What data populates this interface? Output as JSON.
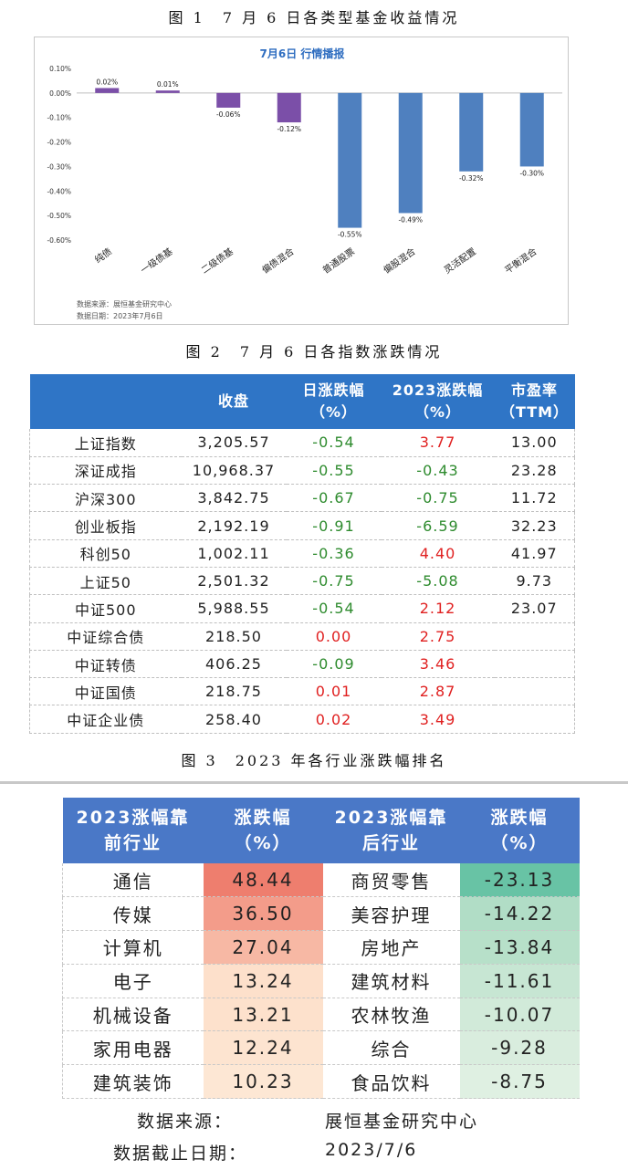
{
  "captions": {
    "fig1": "图 1　7 月 6 日各类型基金收益情况",
    "fig2": "图 2　7 月 6 日各指数涨跌情况",
    "fig3": "图 3　2023 年各行业涨跌幅排名"
  },
  "chart_data": {
    "type": "bar",
    "title": "7月6日  行情播报",
    "categories": [
      "纯债",
      "一级债基",
      "二级债基",
      "偏债混合",
      "普通股票",
      "偏股混合",
      "灵活配置",
      "平衡混合"
    ],
    "values": [
      0.02,
      0.01,
      -0.06,
      -0.12,
      -0.55,
      -0.49,
      -0.32,
      -0.3
    ],
    "value_labels": [
      "0.02%",
      "0.01%",
      "-0.06%",
      "-0.12%",
      "-0.55%",
      "-0.49%",
      "-0.32%",
      "-0.30%"
    ],
    "ylim": [
      -0.6,
      0.1
    ],
    "yticks": [
      0.1,
      0.0,
      -0.1,
      -0.2,
      -0.3,
      -0.4,
      -0.5,
      -0.6
    ],
    "ytick_labels": [
      "0.10%",
      "0.00%",
      "-0.10%",
      "-0.20%",
      "-0.30%",
      "-0.40%",
      "-0.50%",
      "-0.60%"
    ],
    "bar_colors": [
      "#7b4fa8",
      "#7b4fa8",
      "#7b4fa8",
      "#7b4fa8",
      "#4f80bf",
      "#4f80bf",
      "#4f80bf",
      "#4f80bf"
    ],
    "title_color": "#2e6dc0",
    "source": "数据来源：展恒基金研究中心",
    "date": "数据日期：2023年7月6日",
    "grid": false
  },
  "index_table": {
    "headers": [
      "",
      "收盘",
      "日涨跌幅\n（%）",
      "2023涨跌幅\n（%）",
      "市盈率\n（TTM）"
    ],
    "rows": [
      {
        "name": "上证指数",
        "close": "3,205.57",
        "day": "-0.54",
        "day_dir": "down",
        "ytd": "3.77",
        "ytd_dir": "up",
        "pe": "13.00"
      },
      {
        "name": "深证成指",
        "close": "10,968.37",
        "day": "-0.55",
        "day_dir": "down",
        "ytd": "-0.43",
        "ytd_dir": "down",
        "pe": "23.28"
      },
      {
        "name": "沪深300",
        "close": "3,842.75",
        "day": "-0.67",
        "day_dir": "down",
        "ytd": "-0.75",
        "ytd_dir": "down",
        "pe": "11.72"
      },
      {
        "name": "创业板指",
        "close": "2,192.19",
        "day": "-0.91",
        "day_dir": "down",
        "ytd": "-6.59",
        "ytd_dir": "down",
        "pe": "32.23"
      },
      {
        "name": "科创50",
        "close": "1,002.11",
        "day": "-0.36",
        "day_dir": "down",
        "ytd": "4.40",
        "ytd_dir": "up",
        "pe": "41.97"
      },
      {
        "name": "上证50",
        "close": "2,501.32",
        "day": "-0.75",
        "day_dir": "down",
        "ytd": "-5.08",
        "ytd_dir": "down",
        "pe": "9.73"
      },
      {
        "name": "中证500",
        "close": "5,988.55",
        "day": "-0.54",
        "day_dir": "down",
        "ytd": "2.12",
        "ytd_dir": "up",
        "pe": "23.07"
      },
      {
        "name": "中证综合债",
        "close": "218.50",
        "day": "0.00",
        "day_dir": "up",
        "ytd": "2.75",
        "ytd_dir": "up",
        "pe": ""
      },
      {
        "name": "中证转债",
        "close": "406.25",
        "day": "-0.09",
        "day_dir": "down",
        "ytd": "3.46",
        "ytd_dir": "up",
        "pe": ""
      },
      {
        "name": "中证国债",
        "close": "218.75",
        "day": "0.01",
        "day_dir": "up",
        "ytd": "2.87",
        "ytd_dir": "up",
        "pe": ""
      },
      {
        "name": "中证企业债",
        "close": "258.40",
        "day": "0.02",
        "day_dir": "up",
        "ytd": "3.49",
        "ytd_dir": "up",
        "pe": ""
      }
    ],
    "colors": {
      "up": "#e02020",
      "down": "#2e8b2e",
      "header_bg": "#2f75c6"
    }
  },
  "industry_table": {
    "headers": [
      "2023涨幅靠\n前行业",
      "涨跌幅\n（%）",
      "2023涨幅靠\n后行业",
      "涨跌幅\n（%）"
    ],
    "rows": [
      {
        "top": "通信",
        "top_val": "48.44",
        "top_bg": "#ee7e6e",
        "bottom": "商贸零售",
        "bottom_val": "-23.13",
        "bottom_bg": "#68c3a5"
      },
      {
        "top": "传媒",
        "top_val": "36.50",
        "top_bg": "#f39c8a",
        "bottom": "美容护理",
        "bottom_val": "-14.22",
        "bottom_bg": "#b1ddc6"
      },
      {
        "top": "计算机",
        "top_val": "27.04",
        "top_bg": "#f7b8a4",
        "bottom": "房地产",
        "bottom_val": "-13.84",
        "bottom_bg": "#b7e0c9"
      },
      {
        "top": "电子",
        "top_val": "13.24",
        "top_bg": "#fde0cb",
        "bottom": "建筑材料",
        "bottom_val": "-11.61",
        "bottom_bg": "#c7e6d3"
      },
      {
        "top": "机械设备",
        "top_val": "13.21",
        "top_bg": "#fde1cc",
        "bottom": "农林牧渔",
        "bottom_val": "-10.07",
        "bottom_bg": "#d1ead9"
      },
      {
        "top": "家用电器",
        "top_val": "12.24",
        "top_bg": "#fde4d0",
        "bottom": "综合",
        "bottom_val": "-9.28",
        "bottom_bg": "#d9edde"
      },
      {
        "top": "建筑装饰",
        "top_val": "10.23",
        "top_bg": "#fde7d4",
        "bottom": "食品饮料",
        "bottom_val": "-8.75",
        "bottom_bg": "#dff0e2"
      }
    ],
    "header_bg": "#4a78c7",
    "source_label": "数据来源：",
    "source_value": "展恒基金研究中心",
    "date_label": "数据截止日期：",
    "date_value": "2023/7/6"
  }
}
